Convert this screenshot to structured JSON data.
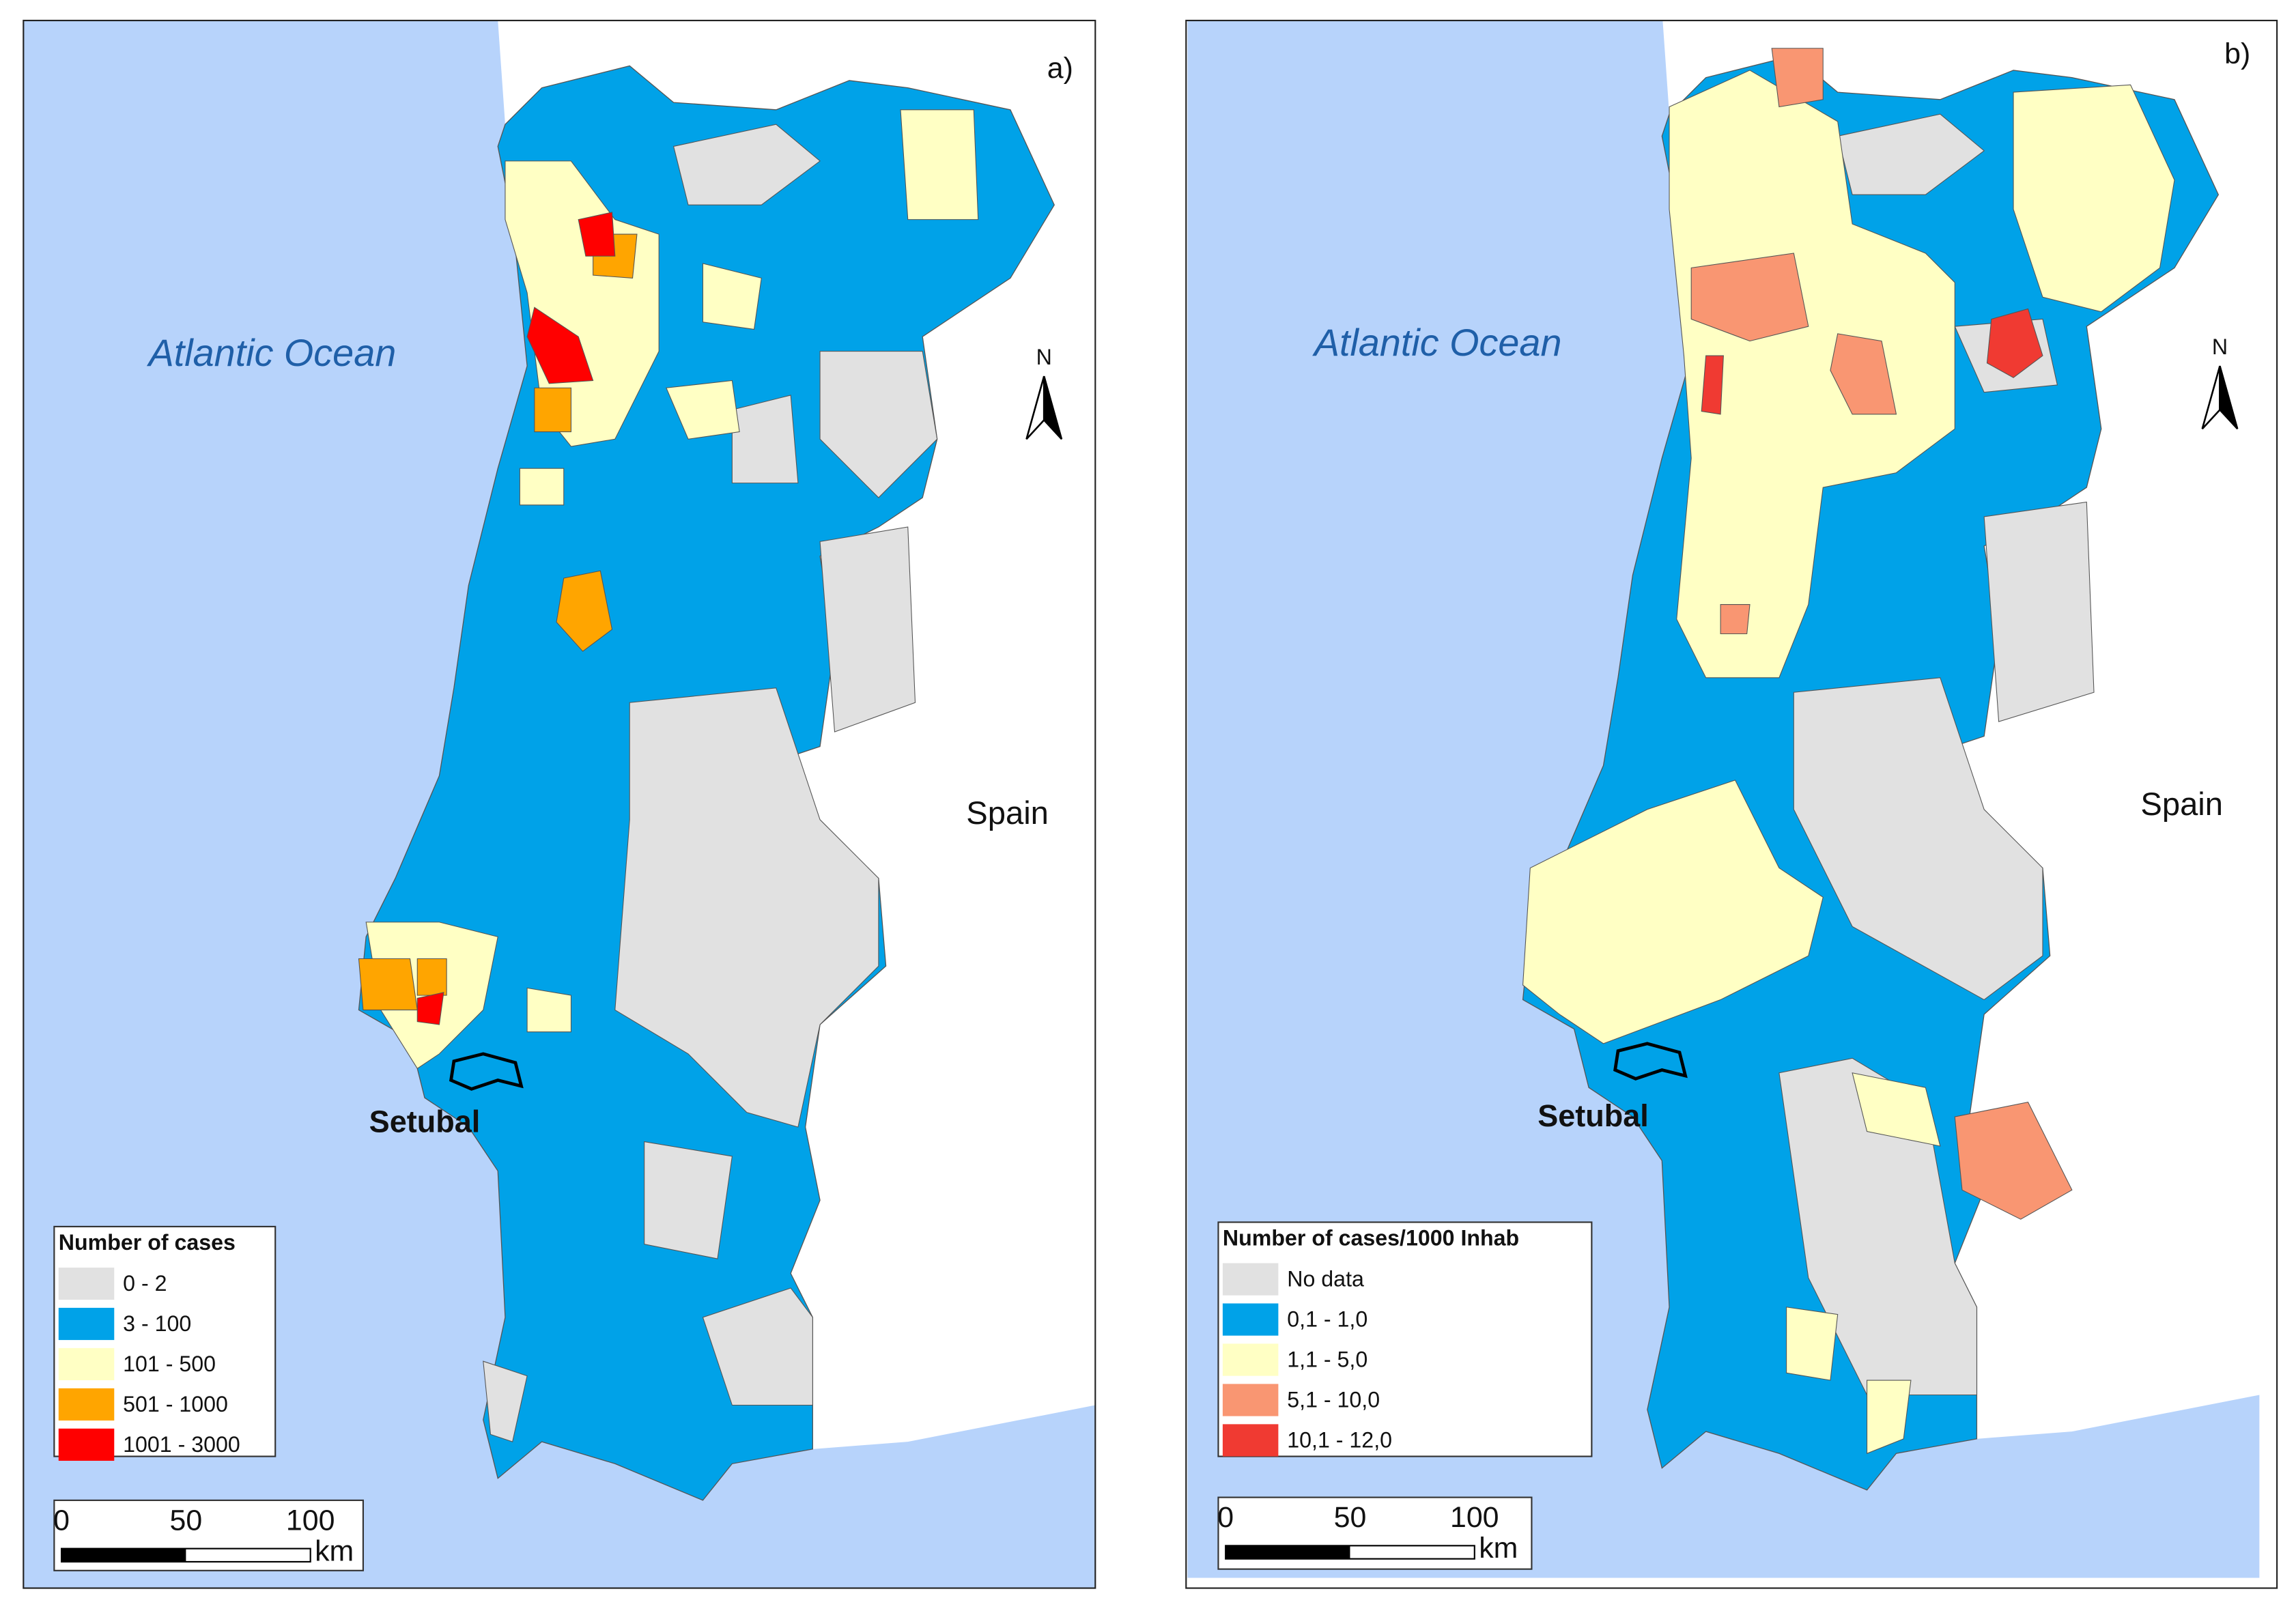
{
  "panels": [
    {
      "label": "a)",
      "ocean_label": "Atlantic Ocean",
      "country_label": "Spain",
      "site_label": "Setubal",
      "north": "N",
      "legend": {
        "title": "Number of cases",
        "items": [
          {
            "label": "0 - 2",
            "color": "#e1e1e1"
          },
          {
            "label": "3 - 100",
            "color": "#00a2e8"
          },
          {
            "label": "101 - 500",
            "color": "#ffffc4"
          },
          {
            "label": "501 - 1000",
            "color": "#ffa500"
          },
          {
            "label": "1001 - 3000",
            "color": "#ff0000"
          }
        ]
      },
      "scale": {
        "ticks": [
          0,
          50,
          100
        ],
        "unit": "km"
      }
    },
    {
      "label": "b)",
      "ocean_label": "Atlantic Ocean",
      "country_label": "Spain",
      "site_label": "Setubal",
      "north": "N",
      "legend": {
        "title": "Number of cases/1000 Inhab",
        "items": [
          {
            "label": "No data",
            "color": "#e1e1e1"
          },
          {
            "label": "0,1 - 1,0",
            "color": "#00a2e8"
          },
          {
            "label": "1,1 - 5,0",
            "color": "#ffffc4"
          },
          {
            "label": "5,1 - 10,0",
            "color": "#f99672"
          },
          {
            "label": "10,1 - 12,0",
            "color": "#f03a32"
          }
        ]
      },
      "scale": {
        "ticks": [
          0,
          50,
          100
        ],
        "unit": "km"
      }
    }
  ]
}
